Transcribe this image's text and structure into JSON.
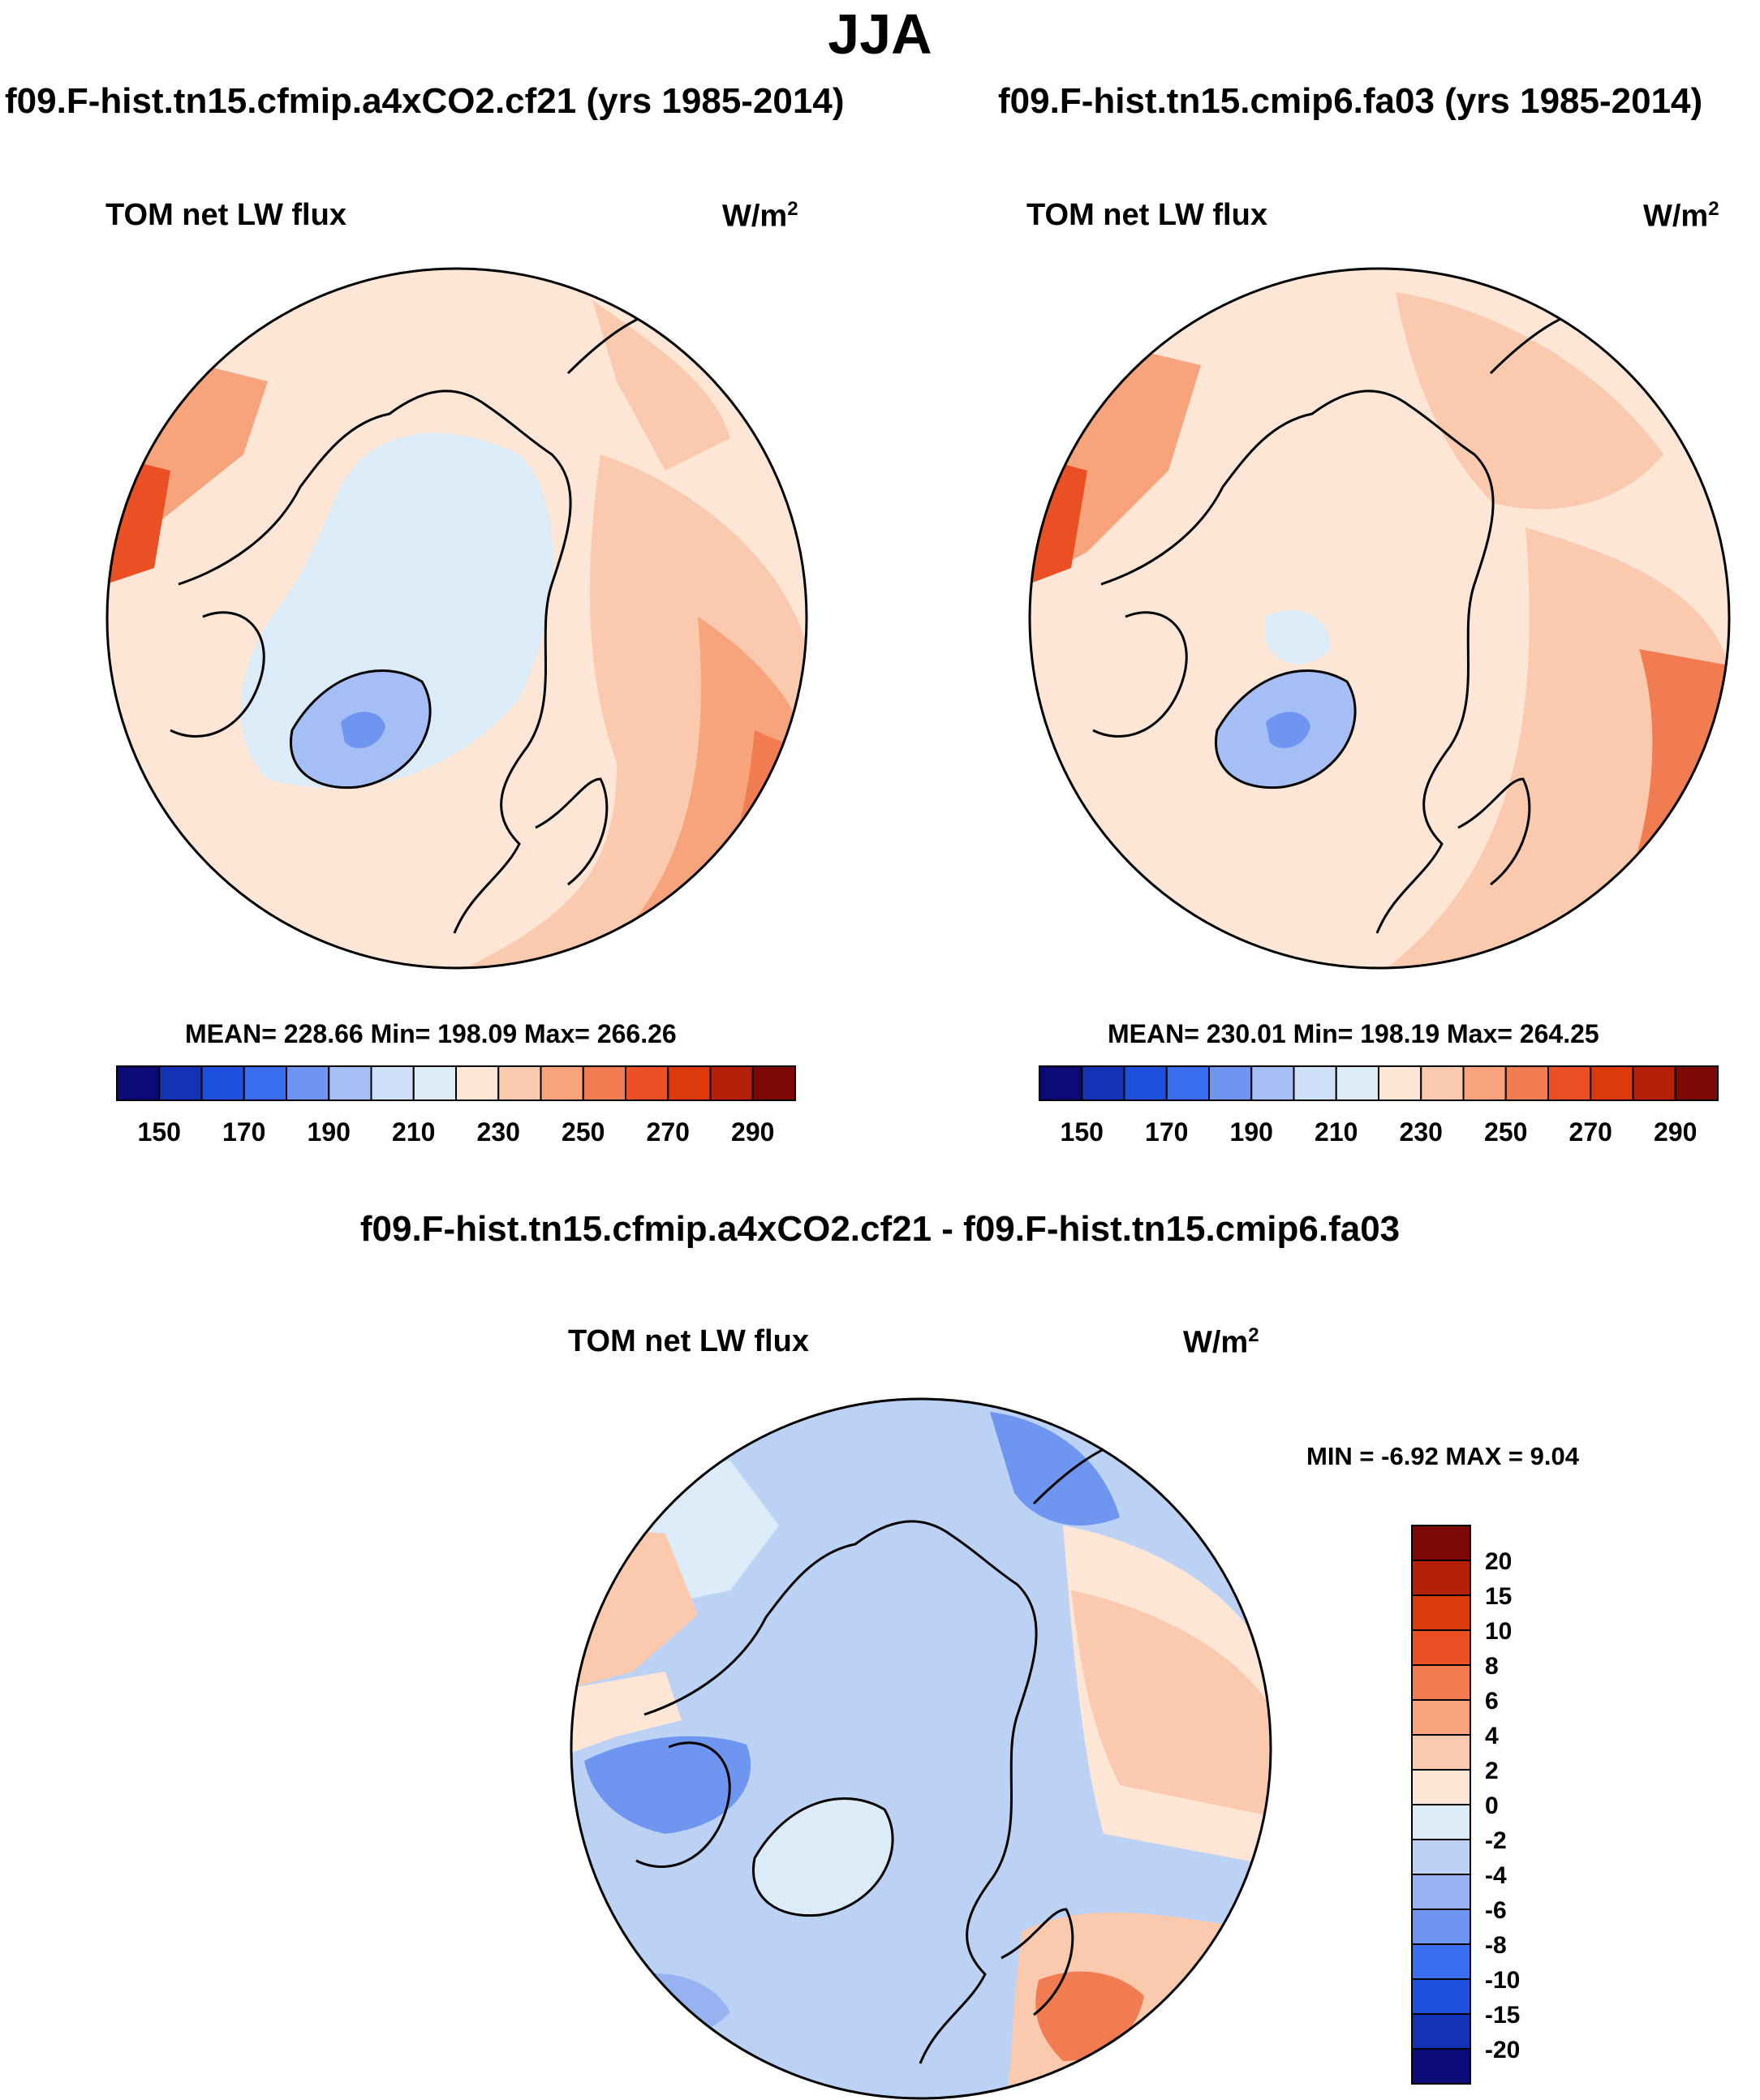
{
  "main_title": "JJA",
  "panels": [
    {
      "case_title": "f09.F-hist.tn15.cfmip.a4xCO2.cf21 (yrs 1985-2014)",
      "variable": "TOM net LW flux",
      "unit": "W/m",
      "unit_exp": "2",
      "stats": "MEAN= 228.66  Min= 198.09  Max= 266.26"
    },
    {
      "case_title": "f09.F-hist.tn15.cmip6.fa03 (yrs 1985-2014)",
      "variable": "TOM net LW flux",
      "unit": "W/m",
      "unit_exp": "2",
      "stats": "MEAN= 230.01  Min= 198.19  Max= 264.25"
    }
  ],
  "diff": {
    "title": "f09.F-hist.tn15.cfmip.a4xCO2.cf21 - f09.F-hist.tn15.cmip6.fa03",
    "variable": "TOM net LW flux",
    "unit": "W/m",
    "unit_exp": "2",
    "minmax": "MIN =  -6.92 MAX =   9.04"
  },
  "chart_data": [
    {
      "type": "heatmap",
      "projection": "north-polar-stereographic",
      "title": "f09.F-hist.tn15.cfmip.a4xCO2.cf21 (yrs 1985-2014)",
      "variable": "TOM net LW flux",
      "units": "W/m2",
      "mean": 228.66,
      "min": 198.09,
      "max": 266.26,
      "colorbar": {
        "orientation": "horizontal",
        "levels": [
          150,
          160,
          170,
          180,
          190,
          200,
          210,
          220,
          230,
          240,
          250,
          260,
          270,
          280,
          290
        ],
        "tick_labels": [
          "150",
          "170",
          "190",
          "210",
          "230",
          "250",
          "270",
          "290"
        ],
        "colors": [
          "#0b0b78",
          "#1432b4",
          "#1e50dc",
          "#3a6ef0",
          "#6e96f0",
          "#a5bef5",
          "#cde0f7",
          "#dcebf8",
          "#fde6d6",
          "#fbcaae",
          "#f7a37c",
          "#f27c52",
          "#ea5024",
          "#dc3a0a",
          "#b42008",
          "#7d0808"
        ]
      }
    },
    {
      "type": "heatmap",
      "projection": "north-polar-stereographic",
      "title": "f09.F-hist.tn15.cmip6.fa03 (yrs 1985-2014)",
      "variable": "TOM net LW flux",
      "units": "W/m2",
      "mean": 230.01,
      "min": 198.19,
      "max": 264.25,
      "colorbar": {
        "orientation": "horizontal",
        "levels": [
          150,
          160,
          170,
          180,
          190,
          200,
          210,
          220,
          230,
          240,
          250,
          260,
          270,
          280,
          290
        ],
        "tick_labels": [
          "150",
          "170",
          "190",
          "210",
          "230",
          "250",
          "270",
          "290"
        ],
        "colors": [
          "#0b0b78",
          "#1432b4",
          "#1e50dc",
          "#3a6ef0",
          "#6e96f0",
          "#a5bef5",
          "#cde0f7",
          "#dcebf8",
          "#fde6d6",
          "#fbcaae",
          "#f7a37c",
          "#f27c52",
          "#ea5024",
          "#dc3a0a",
          "#b42008",
          "#7d0808"
        ]
      }
    },
    {
      "type": "heatmap",
      "projection": "north-polar-stereographic",
      "title": "f09.F-hist.tn15.cfmip.a4xCO2.cf21 - f09.F-hist.tn15.cmip6.fa03",
      "variable": "TOM net LW flux",
      "units": "W/m2",
      "min": -6.92,
      "max": 9.04,
      "colorbar": {
        "orientation": "vertical",
        "levels": [
          20,
          15,
          10,
          8,
          6,
          4,
          2,
          0,
          -2,
          -4,
          -6,
          -8,
          -10,
          -15,
          -20
        ],
        "tick_labels": [
          "20",
          "15",
          "10",
          "8",
          "6",
          "4",
          "2",
          "0",
          "-2",
          "-4",
          "-6",
          "-8",
          "-10",
          "-15",
          "-20"
        ],
        "colors_top_to_bottom": [
          "#7d0808",
          "#b42008",
          "#dc3a0a",
          "#ea5024",
          "#f27c52",
          "#f7a37c",
          "#fbcaae",
          "#fde6d6",
          "#dcebf8",
          "#bcd2f5",
          "#96b2f0",
          "#6e96f0",
          "#3a6ef0",
          "#1e50dc",
          "#1432b4",
          "#0b0b78"
        ]
      }
    }
  ]
}
